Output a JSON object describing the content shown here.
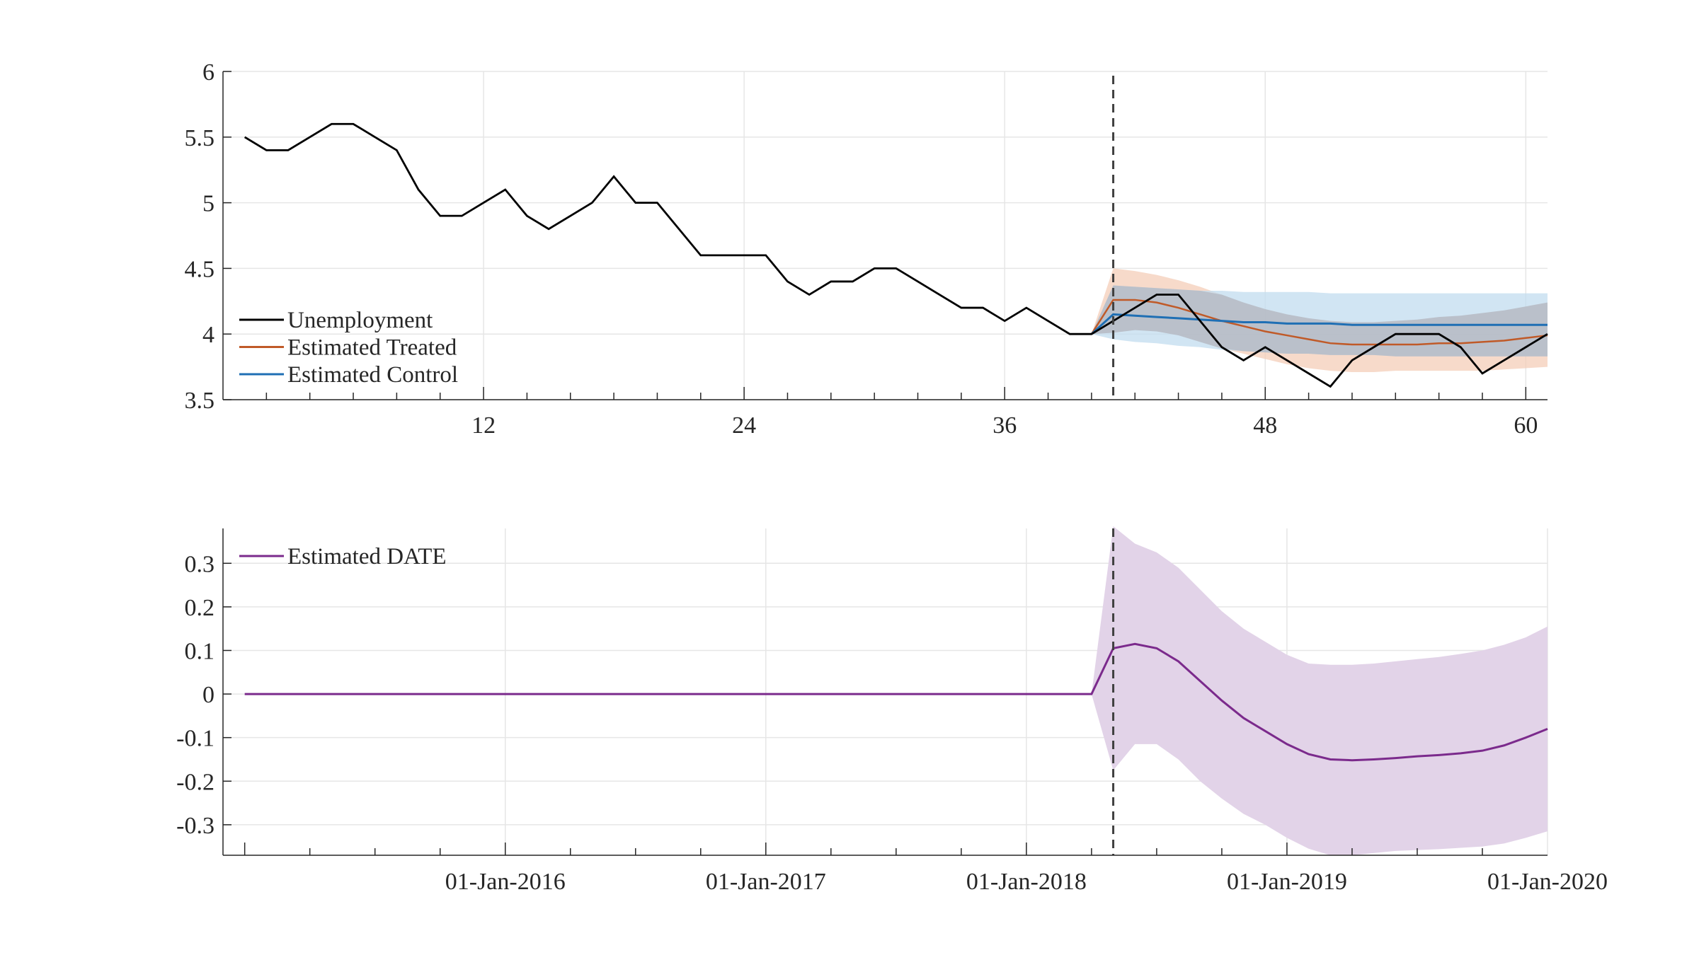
{
  "chart_data": [
    {
      "type": "line",
      "x": [
        1,
        2,
        3,
        4,
        5,
        6,
        7,
        8,
        9,
        10,
        11,
        12,
        13,
        14,
        15,
        16,
        17,
        18,
        19,
        20,
        21,
        22,
        23,
        24,
        25,
        26,
        27,
        28,
        29,
        30,
        31,
        32,
        33,
        34,
        35,
        36,
        37,
        38,
        39,
        40,
        41,
        42,
        43,
        44,
        45,
        46,
        47,
        48,
        49,
        50,
        51,
        52,
        53,
        54,
        55,
        56,
        57,
        58,
        59,
        60,
        61
      ],
      "xlim": [
        0,
        61
      ],
      "ylim": [
        3.5,
        6
      ],
      "x_ticks": [
        12,
        24,
        36,
        48,
        60
      ],
      "y_ticks": [
        3.5,
        4,
        4.5,
        5,
        5.5,
        6
      ],
      "treatment_line_x": 41,
      "grid": true,
      "legend_position": "lower-left",
      "series": [
        {
          "name": "Unemployment",
          "color": "#000000",
          "values": [
            5.5,
            5.4,
            5.4,
            5.5,
            5.6,
            5.6,
            5.5,
            5.4,
            5.1,
            4.9,
            4.9,
            5.0,
            5.1,
            4.9,
            4.8,
            4.9,
            5.0,
            5.2,
            5.0,
            5.0,
            4.8,
            4.6,
            4.6,
            4.6,
            4.6,
            4.4,
            4.3,
            4.4,
            4.4,
            4.5,
            4.5,
            4.4,
            4.3,
            4.2,
            4.2,
            4.1,
            4.2,
            4.1,
            4.0,
            4.0,
            4.1,
            4.2,
            4.3,
            4.3,
            4.1,
            3.9,
            3.8,
            3.9,
            3.8,
            3.7,
            3.6,
            3.8,
            3.9,
            4.0,
            4.0,
            4.0,
            3.9,
            3.7,
            3.8,
            3.9,
            4.0
          ]
        },
        {
          "name": "Estimated Treated",
          "color": "#c05a28",
          "band_color": "#f3cbb4",
          "x": [
            40,
            41,
            42,
            43,
            44,
            45,
            46,
            47,
            48,
            49,
            50,
            51,
            52,
            53,
            54,
            55,
            56,
            57,
            58,
            59,
            60,
            61
          ],
          "values": [
            4.0,
            4.26,
            4.26,
            4.24,
            4.2,
            4.15,
            4.1,
            4.06,
            4.02,
            3.99,
            3.96,
            3.93,
            3.92,
            3.92,
            3.92,
            3.92,
            3.93,
            3.93,
            3.94,
            3.95,
            3.97,
            3.99
          ],
          "upper": [
            4.0,
            4.5,
            4.48,
            4.45,
            4.41,
            4.36,
            4.3,
            4.24,
            4.19,
            4.15,
            4.12,
            4.1,
            4.09,
            4.09,
            4.1,
            4.11,
            4.13,
            4.14,
            4.16,
            4.18,
            4.21,
            4.24
          ],
          "lower": [
            4.0,
            4.01,
            4.03,
            4.02,
            3.99,
            3.94,
            3.89,
            3.85,
            3.81,
            3.77,
            3.74,
            3.72,
            3.71,
            3.71,
            3.72,
            3.72,
            3.72,
            3.72,
            3.72,
            3.73,
            3.74,
            3.75
          ]
        },
        {
          "name": "Estimated Control",
          "color": "#1f6fb4",
          "band_color": "#c2dcef",
          "x": [
            40,
            41,
            42,
            43,
            44,
            45,
            46,
            47,
            48,
            49,
            50,
            51,
            52,
            53,
            54,
            55,
            56,
            57,
            58,
            59,
            60,
            61
          ],
          "values": [
            4.0,
            4.15,
            4.14,
            4.13,
            4.12,
            4.11,
            4.1,
            4.09,
            4.09,
            4.08,
            4.08,
            4.08,
            4.07,
            4.07,
            4.07,
            4.07,
            4.07,
            4.07,
            4.07,
            4.07,
            4.07,
            4.07
          ],
          "upper": [
            4.0,
            4.37,
            4.36,
            4.35,
            4.34,
            4.33,
            4.33,
            4.32,
            4.32,
            4.32,
            4.32,
            4.31,
            4.31,
            4.31,
            4.31,
            4.31,
            4.31,
            4.31,
            4.31,
            4.31,
            4.31,
            4.31
          ],
          "lower": [
            4.0,
            3.96,
            3.94,
            3.93,
            3.91,
            3.9,
            3.88,
            3.87,
            3.86,
            3.85,
            3.85,
            3.84,
            3.84,
            3.84,
            3.83,
            3.83,
            3.83,
            3.83,
            3.83,
            3.83,
            3.83,
            3.83
          ]
        }
      ]
    },
    {
      "type": "line",
      "x": [
        "2015-01-01",
        "2015-02-01",
        "2015-03-01",
        "2015-04-01",
        "2015-05-01",
        "2015-06-01",
        "2015-07-01",
        "2015-08-01",
        "2015-09-01",
        "2015-10-01",
        "2015-11-01",
        "2015-12-01",
        "2016-01-01",
        "2016-02-01",
        "2016-03-01",
        "2016-04-01",
        "2016-05-01",
        "2016-06-01",
        "2016-07-01",
        "2016-08-01",
        "2016-09-01",
        "2016-10-01",
        "2016-11-01",
        "2016-12-01",
        "2017-01-01",
        "2017-02-01",
        "2017-03-01",
        "2017-04-01",
        "2017-05-01",
        "2017-06-01",
        "2017-07-01",
        "2017-08-01",
        "2017-09-01",
        "2017-10-01",
        "2017-11-01",
        "2017-12-01",
        "2018-01-01",
        "2018-02-01",
        "2018-03-01",
        "2018-04-01",
        "2018-05-01",
        "2018-06-01",
        "2018-07-01",
        "2018-08-01",
        "2018-09-01",
        "2018-10-01",
        "2018-11-01",
        "2018-12-01",
        "2019-01-01",
        "2019-02-01",
        "2019-03-01",
        "2019-04-01",
        "2019-05-01",
        "2019-06-01",
        "2019-07-01",
        "2019-08-01",
        "2019-09-01",
        "2019-10-01",
        "2019-11-01",
        "2019-12-01",
        "2020-01-01"
      ],
      "xlim": [
        "2014-12-01",
        "2020-01-01"
      ],
      "ylim": [
        -0.37,
        0.38
      ],
      "x_ticks": [
        "01-Jan-2016",
        "01-Jan-2017",
        "01-Jan-2018",
        "01-Jan-2019",
        "01-Jan-2020"
      ],
      "y_ticks": [
        -0.3,
        -0.2,
        -0.1,
        0,
        0.1,
        0.2,
        0.3
      ],
      "treatment_line_x": "2018-05-01",
      "grid": true,
      "legend_position": "top-left",
      "series": [
        {
          "name": "Estimated DATE",
          "color": "#7b2a8c",
          "band_color": "#e2d3e8",
          "values": [
            0,
            0,
            0,
            0,
            0,
            0,
            0,
            0,
            0,
            0,
            0,
            0,
            0,
            0,
            0,
            0,
            0,
            0,
            0,
            0,
            0,
            0,
            0,
            0,
            0,
            0,
            0,
            0,
            0,
            0,
            0,
            0,
            0,
            0,
            0,
            0,
            0,
            0,
            0,
            0,
            0.105,
            0.115,
            0.105,
            0.075,
            0.03,
            -0.015,
            -0.055,
            -0.085,
            -0.115,
            -0.138,
            -0.15,
            -0.152,
            -0.15,
            -0.147,
            -0.143,
            -0.14,
            -0.136,
            -0.13,
            -0.118,
            -0.1,
            -0.08
          ],
          "band_x": [
            "2018-04-01",
            "2018-05-01",
            "2018-06-01",
            "2018-07-01",
            "2018-08-01",
            "2018-09-01",
            "2018-10-01",
            "2018-11-01",
            "2018-12-01",
            "2019-01-01",
            "2019-02-01",
            "2019-03-01",
            "2019-04-01",
            "2019-05-01",
            "2019-06-01",
            "2019-07-01",
            "2019-08-01",
            "2019-09-01",
            "2019-10-01",
            "2019-11-01",
            "2019-12-01",
            "2020-01-01"
          ],
          "upper": [
            0,
            0.385,
            0.345,
            0.325,
            0.29,
            0.24,
            0.19,
            0.15,
            0.12,
            0.09,
            0.07,
            0.067,
            0.067,
            0.07,
            0.075,
            0.08,
            0.085,
            0.092,
            0.1,
            0.113,
            0.13,
            0.155
          ],
          "lower": [
            0,
            -0.175,
            -0.115,
            -0.115,
            -0.15,
            -0.2,
            -0.24,
            -0.275,
            -0.3,
            -0.33,
            -0.355,
            -0.37,
            -0.37,
            -0.365,
            -0.36,
            -0.358,
            -0.356,
            -0.353,
            -0.35,
            -0.343,
            -0.33,
            -0.315
          ]
        }
      ]
    }
  ]
}
